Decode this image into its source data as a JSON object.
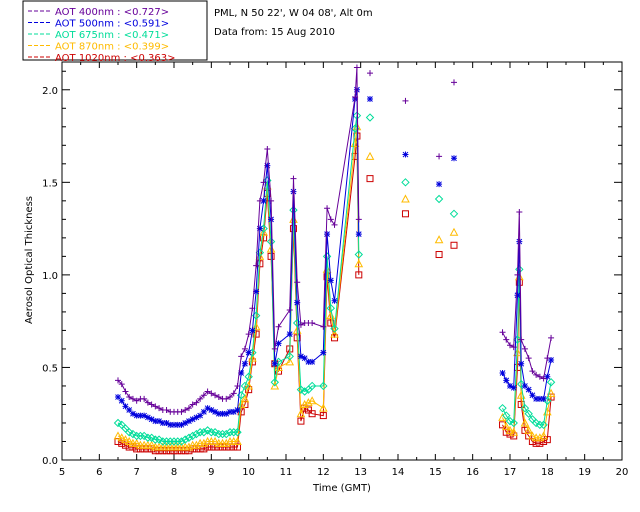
{
  "chart_data": {
    "type": "scatter",
    "title": "PML, N 50 22', W 04 08', Alt 0m",
    "subtitle": "Data from: 15 Aug 2010",
    "xlabel": "Time (GMT)",
    "ylabel": "Aerosol Optical Thickness",
    "xlim": [
      5,
      20
    ],
    "ylim": [
      0,
      2.15
    ],
    "xticks": [
      "5",
      "6",
      "7",
      "8",
      "9",
      "10",
      "11",
      "12",
      "13",
      "14",
      "15",
      "16",
      "17",
      "18",
      "19",
      "20"
    ],
    "yticks": [
      "0.0",
      "0.5",
      "1.0",
      "1.5",
      "2.0"
    ],
    "x": [
      6.5,
      6.6,
      6.7,
      6.8,
      6.9,
      7.0,
      7.1,
      7.2,
      7.3,
      7.4,
      7.5,
      7.6,
      7.7,
      7.8,
      7.9,
      8.0,
      8.1,
      8.2,
      8.3,
      8.4,
      8.5,
      8.6,
      8.7,
      8.8,
      8.9,
      9.0,
      9.1,
      9.2,
      9.3,
      9.4,
      9.5,
      9.6,
      9.7,
      9.8,
      9.9,
      10.0,
      10.1,
      10.2,
      10.3,
      10.4,
      10.5,
      10.6,
      10.7,
      10.8,
      11.1,
      11.2,
      11.3,
      11.4,
      11.5,
      11.6,
      11.7,
      12.0,
      12.1,
      12.2,
      12.3,
      12.85,
      12.9,
      12.95,
      13.25,
      14.2,
      15.1,
      15.5,
      16.8,
      16.9,
      17.0,
      17.1,
      17.2,
      17.25,
      17.3,
      17.4,
      17.5,
      17.6,
      17.7,
      17.8,
      17.9,
      18.0,
      18.1
    ],
    "series": [
      {
        "name": "AOT  400nm : <0.727>",
        "color": "#660099",
        "marker": "plus",
        "connected": [
          true,
          true,
          true,
          true,
          true,
          true,
          true,
          true,
          true,
          true,
          true,
          true,
          true,
          true,
          true,
          true,
          true,
          true,
          true,
          true,
          true,
          true,
          true,
          true,
          true,
          true,
          true,
          true,
          true,
          true,
          true,
          true,
          true,
          true,
          true,
          true,
          true,
          true,
          true,
          true,
          true,
          true,
          true,
          true,
          true,
          true,
          true,
          true,
          true,
          true,
          true,
          true,
          true,
          true,
          true,
          true,
          true,
          true,
          false,
          false,
          false,
          false,
          true,
          true,
          true,
          true,
          true,
          true,
          true,
          true,
          true,
          true,
          true,
          true,
          true,
          true,
          true
        ],
        "values": [
          0.43,
          0.41,
          0.37,
          0.34,
          0.33,
          0.32,
          0.33,
          0.33,
          0.31,
          0.3,
          0.29,
          0.28,
          0.27,
          0.27,
          0.26,
          0.26,
          0.26,
          0.26,
          0.27,
          0.28,
          0.3,
          0.31,
          0.33,
          0.35,
          0.37,
          0.36,
          0.35,
          0.34,
          0.33,
          0.33,
          0.34,
          0.36,
          0.4,
          0.56,
          0.6,
          0.68,
          0.82,
          1.05,
          1.4,
          1.5,
          1.68,
          1.4,
          0.6,
          0.72,
          0.81,
          1.52,
          0.96,
          0.73,
          0.74,
          0.74,
          0.74,
          0.72,
          1.36,
          1.3,
          1.27,
          1.96,
          2.12,
          1.3,
          2.09,
          1.94,
          1.64,
          2.04,
          0.69,
          0.65,
          0.62,
          0.61,
          1.0,
          1.34,
          0.65,
          0.6,
          0.55,
          0.48,
          0.46,
          0.45,
          0.44,
          0.55,
          0.66
        ]
      },
      {
        "name": "AOT  500nm : <0.591>",
        "color": "#0000dd",
        "marker": "asterisk",
        "connected": [
          true,
          true,
          true,
          true,
          true,
          true,
          true,
          true,
          true,
          true,
          true,
          true,
          true,
          true,
          true,
          true,
          true,
          true,
          true,
          true,
          true,
          true,
          true,
          true,
          true,
          true,
          true,
          true,
          true,
          true,
          true,
          true,
          true,
          true,
          true,
          true,
          true,
          true,
          true,
          true,
          true,
          true,
          true,
          true,
          true,
          true,
          true,
          true,
          true,
          true,
          true,
          true,
          true,
          true,
          true,
          true,
          true,
          true,
          false,
          false,
          false,
          false,
          true,
          true,
          true,
          true,
          true,
          true,
          true,
          true,
          true,
          true,
          true,
          true,
          true,
          true,
          true
        ],
        "values": [
          0.34,
          0.32,
          0.29,
          0.27,
          0.25,
          0.24,
          0.24,
          0.24,
          0.23,
          0.22,
          0.21,
          0.21,
          0.2,
          0.2,
          0.19,
          0.19,
          0.19,
          0.19,
          0.2,
          0.21,
          0.22,
          0.23,
          0.24,
          0.26,
          0.28,
          0.27,
          0.26,
          0.25,
          0.25,
          0.25,
          0.26,
          0.26,
          0.27,
          0.47,
          0.52,
          0.58,
          0.7,
          0.91,
          1.25,
          1.4,
          1.59,
          1.3,
          0.52,
          0.63,
          0.68,
          1.45,
          0.85,
          0.56,
          0.55,
          0.53,
          0.53,
          0.58,
          1.22,
          0.97,
          0.86,
          1.95,
          2.0,
          1.22,
          1.95,
          1.65,
          1.49,
          1.63,
          0.47,
          0.43,
          0.4,
          0.39,
          0.89,
          1.18,
          0.52,
          0.4,
          0.38,
          0.35,
          0.33,
          0.33,
          0.33,
          0.45,
          0.54
        ]
      },
      {
        "name": "AOT  675nm : <0.471>",
        "color": "#00dd99",
        "marker": "diamond",
        "connected": [
          true,
          true,
          true,
          true,
          true,
          true,
          true,
          true,
          true,
          true,
          true,
          true,
          true,
          true,
          true,
          true,
          true,
          true,
          true,
          true,
          true,
          true,
          true,
          true,
          true,
          true,
          true,
          true,
          true,
          true,
          true,
          true,
          true,
          true,
          true,
          true,
          true,
          true,
          true,
          true,
          true,
          true,
          true,
          true,
          true,
          true,
          true,
          true,
          true,
          true,
          true,
          true,
          true,
          true,
          true,
          true,
          true,
          true,
          false,
          false,
          false,
          false,
          true,
          true,
          true,
          true,
          true,
          true,
          true,
          true,
          true,
          true,
          true,
          true,
          true,
          true,
          true
        ],
        "values": [
          0.2,
          0.19,
          0.17,
          0.15,
          0.14,
          0.13,
          0.13,
          0.13,
          0.12,
          0.12,
          0.11,
          0.11,
          0.1,
          0.1,
          0.1,
          0.1,
          0.1,
          0.1,
          0.11,
          0.12,
          0.13,
          0.14,
          0.15,
          0.15,
          0.16,
          0.15,
          0.15,
          0.14,
          0.14,
          0.14,
          0.15,
          0.15,
          0.15,
          0.35,
          0.4,
          0.45,
          0.58,
          0.78,
          1.12,
          1.25,
          1.51,
          1.18,
          0.42,
          0.53,
          0.56,
          1.35,
          0.74,
          0.38,
          0.37,
          0.38,
          0.4,
          0.4,
          1.1,
          0.82,
          0.71,
          1.79,
          1.86,
          1.11,
          1.85,
          1.5,
          1.41,
          1.33,
          0.28,
          0.24,
          0.21,
          0.2,
          0.65,
          1.03,
          0.41,
          0.28,
          0.25,
          0.22,
          0.2,
          0.19,
          0.19,
          0.32,
          0.42
        ]
      },
      {
        "name": "AOT  870nm : <0.399>",
        "color": "#ffbb00",
        "marker": "triangle",
        "connected": [
          true,
          true,
          true,
          true,
          true,
          true,
          true,
          true,
          true,
          true,
          true,
          true,
          true,
          true,
          true,
          true,
          true,
          true,
          true,
          true,
          true,
          true,
          true,
          true,
          true,
          true,
          true,
          true,
          true,
          true,
          true,
          true,
          true,
          true,
          true,
          true,
          true,
          true,
          true,
          true,
          true,
          true,
          true,
          true,
          true,
          true,
          true,
          true,
          true,
          true,
          true,
          true,
          true,
          true,
          true,
          true,
          true,
          true,
          false,
          false,
          false,
          false,
          true,
          true,
          true,
          true,
          true,
          true,
          true,
          true,
          true,
          true,
          true,
          true,
          true,
          true,
          true
        ],
        "values": [
          0.13,
          0.12,
          0.11,
          0.1,
          0.09,
          0.09,
          0.08,
          0.08,
          0.08,
          0.08,
          0.07,
          0.07,
          0.07,
          0.07,
          0.07,
          0.07,
          0.07,
          0.07,
          0.07,
          0.07,
          0.08,
          0.08,
          0.09,
          0.09,
          0.1,
          0.1,
          0.1,
          0.09,
          0.09,
          0.09,
          0.1,
          0.1,
          0.1,
          0.3,
          0.33,
          0.4,
          0.55,
          0.72,
          1.1,
          1.23,
          1.48,
          1.14,
          0.4,
          0.5,
          0.53,
          1.3,
          0.7,
          0.25,
          0.3,
          0.31,
          0.32,
          0.28,
          1.03,
          0.78,
          0.68,
          1.71,
          1.8,
          1.06,
          1.64,
          1.41,
          1.19,
          1.23,
          0.23,
          0.18,
          0.16,
          0.15,
          0.58,
          0.99,
          0.35,
          0.2,
          0.16,
          0.13,
          0.12,
          0.12,
          0.13,
          0.26,
          0.36
        ]
      },
      {
        "name": "AOT 1020nm : <0.363>",
        "color": "#cc0000",
        "marker": "square",
        "connected": [
          true,
          true,
          true,
          true,
          true,
          true,
          true,
          true,
          true,
          true,
          true,
          true,
          true,
          true,
          true,
          true,
          true,
          true,
          true,
          true,
          true,
          true,
          true,
          true,
          true,
          true,
          true,
          true,
          true,
          true,
          true,
          true,
          true,
          true,
          true,
          true,
          true,
          true,
          true,
          true,
          true,
          true,
          true,
          true,
          true,
          true,
          true,
          true,
          true,
          true,
          true,
          true,
          true,
          true,
          true,
          true,
          true,
          true,
          false,
          false,
          false,
          false,
          true,
          true,
          true,
          true,
          true,
          true,
          true,
          true,
          true,
          true,
          true,
          true,
          true,
          true,
          true
        ],
        "values": [
          0.1,
          0.09,
          0.08,
          0.07,
          0.07,
          0.06,
          0.06,
          0.06,
          0.06,
          0.06,
          0.05,
          0.05,
          0.05,
          0.05,
          0.05,
          0.05,
          0.05,
          0.05,
          0.05,
          0.05,
          0.06,
          0.06,
          0.06,
          0.06,
          0.07,
          0.07,
          0.07,
          0.07,
          0.07,
          0.07,
          0.07,
          0.07,
          0.07,
          0.26,
          0.3,
          0.38,
          0.53,
          0.68,
          1.06,
          1.2,
          1.44,
          1.1,
          0.52,
          0.48,
          0.6,
          1.25,
          0.66,
          0.21,
          0.28,
          0.27,
          0.25,
          0.24,
          0.99,
          0.74,
          0.66,
          1.64,
          1.75,
          1.0,
          1.52,
          1.33,
          1.11,
          1.16,
          0.19,
          0.15,
          0.14,
          0.13,
          0.5,
          0.96,
          0.3,
          0.16,
          0.13,
          0.1,
          0.09,
          0.09,
          0.1,
          0.11,
          0.34
        ]
      }
    ]
  }
}
